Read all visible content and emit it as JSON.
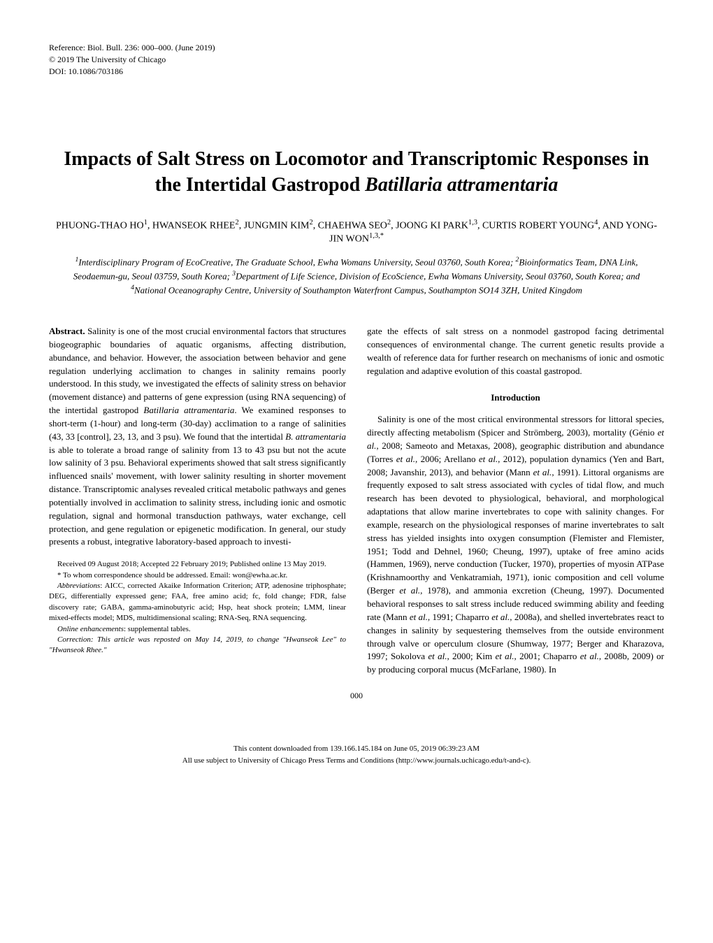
{
  "reference": {
    "line1": "Reference: Biol. Bull. 236: 000–000. (June 2019)",
    "line2": "© 2019 The University of Chicago",
    "line3": "DOI: 10.1086/703186"
  },
  "title": "Impacts of Salt Stress on Locomotor and Transcriptomic Responses in the Intertidal Gastropod Batillaria attramentaria",
  "authors_html": "PHUONG-THAO HO<sup>1</sup>, HWANSEOK RHEE<sup>2</sup>, JUNGMIN KIM<sup>2</sup>, CHAEHWA SEO<sup>2</sup>, JOONG KI PARK<sup>1,3</sup>, CURTIS ROBERT YOUNG<sup>4</sup>, AND YONG-JIN WON<sup>1,3,*</sup>",
  "affiliations_html": "<sup>1</sup>Interdisciplinary Program of EcoCreative, The Graduate School, Ewha Womans University, Seoul 03760, South Korea; <sup>2</sup>Bioinformatics Team, DNA Link, Seodaemun-gu, Seoul 03759, South Korea; <sup>3</sup>Department of Life Science, Division of EcoScience, Ewha Womans University, Seoul 03760, South Korea; and <sup>4</sup>National Oceanography Centre, University of Southampton Waterfront Campus, Southampton SO14 3ZH, United Kingdom",
  "abstract": {
    "label": "Abstract.",
    "text_html": "Salinity is one of the most crucial environmental factors that structures biogeographic boundaries of aquatic organisms, affecting distribution, abundance, and behavior. However, the association between behavior and gene regulation underlying acclimation to changes in salinity remains poorly understood. In this study, we investigated the effects of salinity stress on behavior (movement distance) and patterns of gene expression (using RNA sequencing) of the intertidal gastropod <i>Batillaria attramentaria</i>. We examined responses to short-term (1-hour) and long-term (30-day) acclimation to a range of salinities (43, 33 [control], 23, 13, and 3 psu). We found that the intertidal <i>B. attramentaria</i> is able to tolerate a broad range of salinity from 13 to 43 psu but not the acute low salinity of 3 psu. Behavioral experiments showed that salt stress significantly influenced snails' movement, with lower salinity resulting in shorter movement distance. Transcriptomic analyses revealed critical metabolic pathways and genes potentially involved in acclimation to salinity stress, including ionic and osmotic regulation, signal and hormonal transduction pathways, water exchange, cell protection, and gene regulation or epigenetic modification. In general, our study presents a robust, integrative laboratory-based approach to investi-"
  },
  "abstract_continuation": "gate the effects of salt stress on a nonmodel gastropod facing detrimental consequences of environmental change. The current genetic results provide a wealth of reference data for further research on mechanisms of ionic and osmotic regulation and adaptive evolution of this coastal gastropod.",
  "introduction": {
    "heading": "Introduction",
    "text_html": "Salinity is one of the most critical environmental stressors for littoral species, directly affecting metabolism (Spicer and Strömberg, 2003), mortality (Génio <i>et al.</i>, 2008; Sameoto and Metaxas, 2008), geographic distribution and abundance (Torres <i>et al.</i>, 2006; Arellano <i>et al.</i>, 2012), population dynamics (Yen and Bart, 2008; Javanshir, 2013), and behavior (Mann <i>et al.</i>, 1991). Littoral organisms are frequently exposed to salt stress associated with cycles of tidal flow, and much research has been devoted to physiological, behavioral, and morphological adaptations that allow marine invertebrates to cope with salinity changes. For example, research on the physiological responses of marine invertebrates to salt stress has yielded insights into oxygen consumption (Flemister and Flemister, 1951; Todd and Dehnel, 1960; Cheung, 1997), uptake of free amino acids (Hammen, 1969), nerve conduction (Tucker, 1970), properties of myosin ATPase (Krishnamoorthy and Venkatramiah, 1971), ionic composition and cell volume (Berger <i>et al.</i>, 1978), and ammonia excretion (Cheung, 1997). Documented behavioral responses to salt stress include reduced swimming ability and feeding rate (Mann <i>et al.</i>, 1991; Chaparro <i>et al.</i>, 2008a), and shelled invertebrates react to changes in salinity by sequestering themselves from the outside environment through valve or operculum closure (Shumway, 1977; Berger and Kharazova, 1997; Sokolova <i>et al.</i>, 2000; Kim <i>et al.</i>, 2001; Chaparro <i>et al.</i>, 2008b, 2009) or by producing corporal mucus (McFarlane, 1980). In"
  },
  "footnotes": {
    "received": "Received 09 August 2018; Accepted 22 February 2019; Published online 13 May 2019.",
    "correspondence": "* To whom correspondence should be addressed. Email: won@ewha.ac.kr.",
    "abbreviations_html": "<i>Abbreviations</i>: AICC, corrected Akaike Information Criterion; ATP, adenosine triphosphate; DEG, differentially expressed gene; FAA, free amino acid; fc, fold change; FDR, false discovery rate; GABA, gamma-aminobutyric acid; Hsp, heat shock protein; LMM, linear mixed-effects model; MDS, multidimensional scaling; RNA-Seq, RNA sequencing.",
    "enhancements_html": "<i>Online enhancements</i>: supplemental tables.",
    "correction_html": "<i>Correction: This article was reposted on May 14, 2019, to change \"Hwanseok Lee\" to \"Hwanseok Rhee.\"</i>"
  },
  "page_number": "000",
  "footer": {
    "line1": "This content downloaded from 139.166.145.184 on June 05, 2019 06:39:23 AM",
    "line2": "All use subject to University of Chicago Press Terms and Conditions (http://www.journals.uchicago.edu/t-and-c)."
  }
}
